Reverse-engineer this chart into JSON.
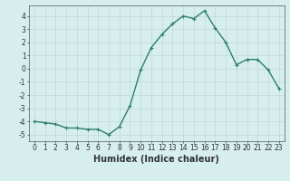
{
  "x": [
    0,
    1,
    2,
    3,
    4,
    5,
    6,
    7,
    8,
    9,
    10,
    11,
    12,
    13,
    14,
    15,
    16,
    17,
    18,
    19,
    20,
    21,
    22,
    23
  ],
  "y": [
    -4.0,
    -4.1,
    -4.2,
    -4.5,
    -4.5,
    -4.6,
    -4.6,
    -5.0,
    -4.4,
    -2.8,
    -0.1,
    1.6,
    2.6,
    3.4,
    4.0,
    3.8,
    4.4,
    3.1,
    2.0,
    0.3,
    0.7,
    0.7,
    -0.1,
    -1.5
  ],
  "line_color": "#2e7d6e",
  "marker": "+",
  "marker_size": 3,
  "linewidth": 1.0,
  "xlabel": "Humidex (Indice chaleur)",
  "xlabel_fontsize": 7,
  "xlabel_fontweight": "bold",
  "ylim": [
    -5.5,
    4.8
  ],
  "xlim": [
    -0.5,
    23.5
  ],
  "yticks": [
    -5,
    -4,
    -3,
    -2,
    -1,
    0,
    1,
    2,
    3,
    4
  ],
  "xticks": [
    0,
    1,
    2,
    3,
    4,
    5,
    6,
    7,
    8,
    9,
    10,
    11,
    12,
    13,
    14,
    15,
    16,
    17,
    18,
    19,
    20,
    21,
    22,
    23
  ],
  "xtick_labels": [
    "0",
    "1",
    "2",
    "3",
    "4",
    "5",
    "6",
    "7",
    "8",
    "9",
    "10",
    "11",
    "12",
    "13",
    "14",
    "15",
    "16",
    "17",
    "18",
    "19",
    "20",
    "21",
    "22",
    "23"
  ],
  "background_color": "#d6eeee",
  "grid_color": "#c0d8d8",
  "tick_fontsize": 5.5,
  "markeredgewidth": 0.8
}
